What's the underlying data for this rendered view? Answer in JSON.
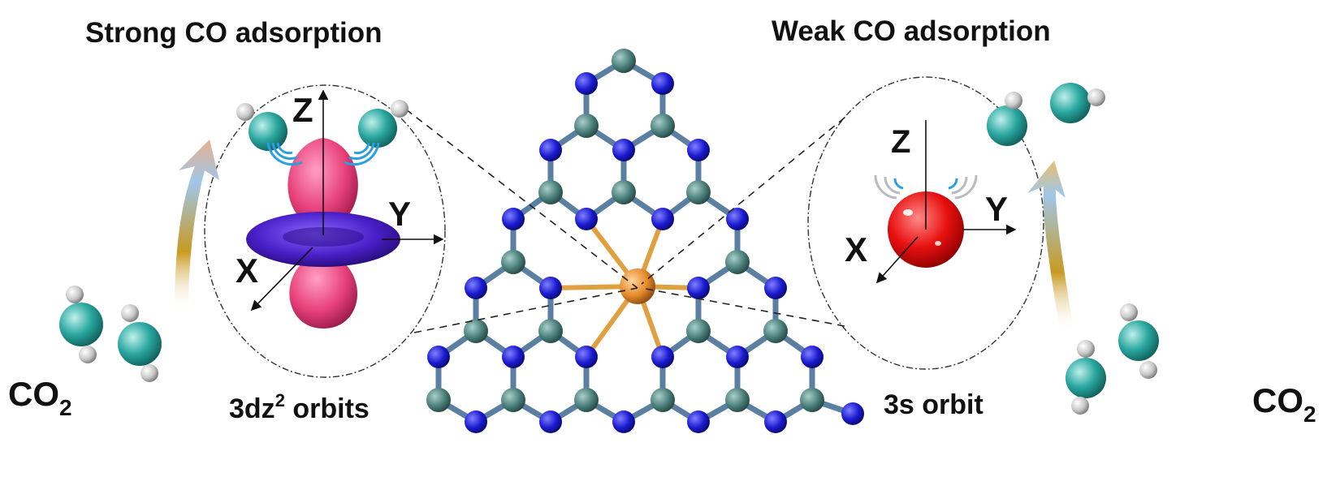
{
  "left_panel": {
    "title": "Strong CO adsorption",
    "orbital_label_base": "3dz",
    "orbital_label_sup": "2",
    "orbital_label_rest": " orbits",
    "axes": {
      "z": "Z",
      "y": "Y",
      "x": "X"
    },
    "reactant_base": "CO",
    "reactant_sub": "2"
  },
  "right_panel": {
    "title": "Weak CO adsorption",
    "orbital_label": "3s orbit",
    "axes": {
      "z": "Z",
      "y": "Y",
      "x": "X"
    },
    "reactant_base": "CO",
    "reactant_sub": "2"
  },
  "colors": {
    "carbon": "#4a7f7a",
    "nitrogen": "#1a1ad0",
    "metal_center": "#e58a2a",
    "co_carbon": "#2aa7a0",
    "co_oxygen": "#c8c8c8",
    "dz2_lobe": "#e8417a",
    "dz2_torus": "#4a1fc8",
    "s_orbital": "#e81010"
  }
}
